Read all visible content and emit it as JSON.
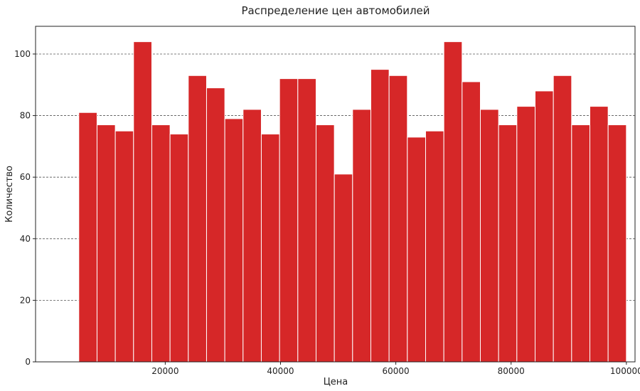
{
  "chart_data": {
    "type": "bar",
    "title": "Распределение цен автомобилей",
    "xlabel": "Цена",
    "ylabel": "Количество",
    "bin_start": 5000,
    "bin_width": 3166.67,
    "values": [
      81,
      77,
      75,
      104,
      77,
      74,
      93,
      89,
      79,
      82,
      74,
      92,
      92,
      77,
      61,
      82,
      95,
      93,
      73,
      75,
      104,
      91,
      82,
      77,
      83,
      88,
      93,
      77,
      83,
      77
    ],
    "xlim": [
      -2500,
      101500
    ],
    "ylim": [
      0,
      109
    ],
    "xticks": [
      20000,
      40000,
      60000,
      80000,
      100000
    ],
    "yticks": [
      0,
      20,
      40,
      60,
      80,
      100
    ],
    "xtick_labels": [
      "20000",
      "40000",
      "60000",
      "80000",
      "100000"
    ],
    "ytick_labels": [
      "0",
      "20",
      "40",
      "60",
      "80",
      "100"
    ],
    "grid": "y-dashed",
    "bar_color": "#d62728",
    "edge_color": "#ffffff"
  }
}
